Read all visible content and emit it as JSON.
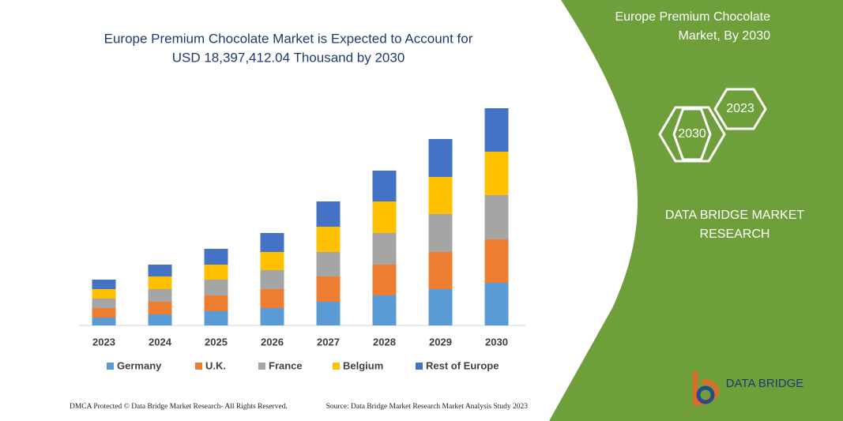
{
  "chart_data": {
    "type": "stacked_bar",
    "title": [
      "Europe Premium Chocolate Market is Expected to Account for",
      "USD 18,397,412.04 Thousand by 2030"
    ],
    "categories": [
      "2023",
      "2024",
      "2025",
      "2026",
      "2027",
      "2028",
      "2029",
      "2030"
    ],
    "series": [
      {
        "name": "Germany",
        "color": "#5b9bd5",
        "values": [
          10,
          14,
          18,
          22,
          30,
          38,
          46,
          54
        ]
      },
      {
        "name": "U.K.",
        "color": "#ed7d31",
        "values": [
          12,
          16,
          20,
          24,
          32,
          39,
          47,
          55
        ]
      },
      {
        "name": "France",
        "color": "#a5a5a5",
        "values": [
          12,
          16,
          20,
          24,
          31,
          40,
          48,
          56
        ]
      },
      {
        "name": "Belgium",
        "color": "#ffc000",
        "values": [
          12,
          16,
          19,
          23,
          32,
          40,
          47,
          55
        ]
      },
      {
        "name": "Rest of Europe",
        "color": "#4472c4",
        "values": [
          12,
          15,
          20,
          24,
          32,
          39,
          48,
          55
        ]
      }
    ]
  },
  "panel": {
    "heading": [
      "Europe Premium Chocolate",
      "Market, By 2030"
    ],
    "badge_start": "2023",
    "badge_end": "2030",
    "brand": [
      "DATA BRIDGE MARKET",
      "RESEARCH"
    ],
    "logo": "DATA BRIDGE"
  },
  "footer": {
    "left": "DMCA Protected © Data Bridge Market Research- All Rights Reserved.",
    "right": "Source: Data Bridge Market Research Market Analysis Study 2023"
  }
}
